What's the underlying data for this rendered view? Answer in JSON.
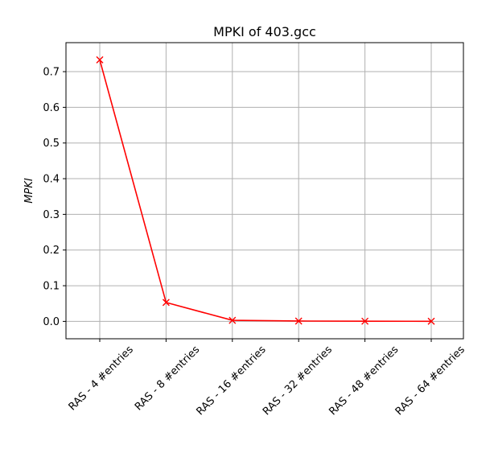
{
  "chart_data": {
    "type": "line",
    "title": "MPKI of 403.gcc",
    "xlabel": "",
    "ylabel": "MPKI",
    "categories": [
      "RAS - 4 #entries",
      "RAS - 8 #entries",
      "RAS - 16 #entries",
      "RAS - 32 #entries",
      "RAS - 48 #entries",
      "RAS - 64 #entries"
    ],
    "series": [
      {
        "values": [
          0.733,
          0.053,
          0.003,
          0.001,
          0.0005,
          0.0003
        ],
        "color": "#ff0000",
        "marker": "x"
      }
    ],
    "yticks": [
      0.0,
      0.1,
      0.2,
      0.3,
      0.4,
      0.5,
      0.6,
      0.7
    ],
    "ytick_labels": [
      "0.0",
      "0.1",
      "0.2",
      "0.3",
      "0.4",
      "0.5",
      "0.6",
      "0.7"
    ],
    "ylim": [
      -0.0487,
      0.7813
    ],
    "grid": true,
    "colors": {
      "grid": "#b0b0b0",
      "axes": "#000000",
      "series": "#ff0000"
    }
  }
}
